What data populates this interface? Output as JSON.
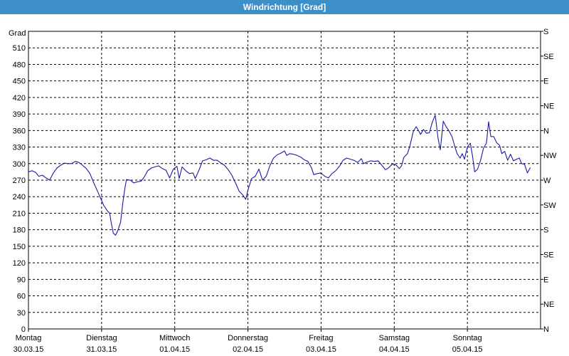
{
  "window": {
    "title": "Windrichtung [Grad]"
  },
  "colors": {
    "titlebar": "#3d8fc8",
    "line": "#1a1aa0",
    "grid": "#000000"
  },
  "chart_data": {
    "type": "line",
    "title": "Windrichtung [Grad]",
    "ylabel": "Grad",
    "ylim": [
      0,
      540
    ],
    "yticks": [
      0,
      30,
      60,
      90,
      120,
      150,
      180,
      210,
      240,
      270,
      300,
      330,
      360,
      390,
      420,
      450,
      480,
      510
    ],
    "right_axis_labels": [
      "N",
      "NE",
      "E",
      "SE",
      "S",
      "SW",
      "W",
      "NW",
      "N",
      "NE",
      "E",
      "SE",
      "S"
    ],
    "xlim": [
      0,
      7
    ],
    "day_ticks": [
      {
        "day": "Montag",
        "date": "30.03.15"
      },
      {
        "day": "Dienstag",
        "date": "31.03.15"
      },
      {
        "day": "Mittwoch",
        "date": "01.04.15"
      },
      {
        "day": "Donnerstag",
        "date": "02.04.15"
      },
      {
        "day": "Freitag",
        "date": "03.04.15"
      },
      {
        "day": "Samstag",
        "date": "04.04.15"
      },
      {
        "day": "Sonntag",
        "date": "05.04.15"
      }
    ],
    "grid": true,
    "series": [
      {
        "values": [
          [
            0.0,
            285
          ],
          [
            0.05,
            287
          ],
          [
            0.1,
            284
          ],
          [
            0.14,
            277
          ],
          [
            0.19,
            279
          ],
          [
            0.24,
            274
          ],
          [
            0.29,
            270
          ],
          [
            0.34,
            283
          ],
          [
            0.39,
            292
          ],
          [
            0.44,
            297
          ],
          [
            0.49,
            301
          ],
          [
            0.54,
            300
          ],
          [
            0.59,
            300
          ],
          [
            0.64,
            304
          ],
          [
            0.69,
            302
          ],
          [
            0.74,
            297
          ],
          [
            0.79,
            291
          ],
          [
            0.84,
            282
          ],
          [
            0.89,
            266
          ],
          [
            0.94,
            251
          ],
          [
            0.99,
            236
          ],
          [
            1.03,
            224
          ],
          [
            1.08,
            214
          ],
          [
            1.11,
            210
          ],
          [
            1.13,
            194
          ],
          [
            1.16,
            174
          ],
          [
            1.19,
            170
          ],
          [
            1.22,
            178
          ],
          [
            1.26,
            194
          ],
          [
            1.29,
            229
          ],
          [
            1.32,
            257
          ],
          [
            1.34,
            271
          ],
          [
            1.39,
            270
          ],
          [
            1.44,
            265
          ],
          [
            1.49,
            267
          ],
          [
            1.54,
            268
          ],
          [
            1.58,
            275
          ],
          [
            1.63,
            287
          ],
          [
            1.68,
            292
          ],
          [
            1.73,
            294
          ],
          [
            1.78,
            296
          ],
          [
            1.83,
            291
          ],
          [
            1.88,
            288
          ],
          [
            1.93,
            274
          ],
          [
            1.98,
            290
          ],
          [
            2.03,
            295
          ],
          [
            2.06,
            273
          ],
          [
            2.1,
            294
          ],
          [
            2.15,
            287
          ],
          [
            2.2,
            282
          ],
          [
            2.25,
            283
          ],
          [
            2.28,
            273
          ],
          [
            2.33,
            288
          ],
          [
            2.38,
            305
          ],
          [
            2.43,
            307
          ],
          [
            2.48,
            310
          ],
          [
            2.53,
            306
          ],
          [
            2.58,
            306
          ],
          [
            2.63,
            301
          ],
          [
            2.68,
            297
          ],
          [
            2.73,
            289
          ],
          [
            2.78,
            279
          ],
          [
            2.83,
            265
          ],
          [
            2.88,
            250
          ],
          [
            2.93,
            243
          ],
          [
            2.97,
            235
          ],
          [
            3.0,
            252
          ],
          [
            3.05,
            273
          ],
          [
            3.1,
            277
          ],
          [
            3.15,
            290
          ],
          [
            3.17,
            282
          ],
          [
            3.2,
            270
          ],
          [
            3.25,
            277
          ],
          [
            3.3,
            296
          ],
          [
            3.35,
            310
          ],
          [
            3.4,
            316
          ],
          [
            3.45,
            319
          ],
          [
            3.5,
            323
          ],
          [
            3.53,
            315
          ],
          [
            3.57,
            318
          ],
          [
            3.62,
            317
          ],
          [
            3.67,
            315
          ],
          [
            3.72,
            312
          ],
          [
            3.77,
            307
          ],
          [
            3.82,
            304
          ],
          [
            3.87,
            292
          ],
          [
            3.9,
            280
          ],
          [
            3.95,
            282
          ],
          [
            4.0,
            283
          ],
          [
            4.05,
            277
          ],
          [
            4.1,
            274
          ],
          [
            4.15,
            282
          ],
          [
            4.2,
            287
          ],
          [
            4.25,
            295
          ],
          [
            4.3,
            306
          ],
          [
            4.35,
            310
          ],
          [
            4.4,
            308
          ],
          [
            4.45,
            306
          ],
          [
            4.5,
            302
          ],
          [
            4.55,
            309
          ],
          [
            4.58,
            300
          ],
          [
            4.63,
            303
          ],
          [
            4.68,
            305
          ],
          [
            4.73,
            304
          ],
          [
            4.78,
            305
          ],
          [
            4.83,
            297
          ],
          [
            4.88,
            289
          ],
          [
            4.92,
            292
          ],
          [
            4.97,
            299
          ],
          [
            5.02,
            298
          ],
          [
            5.07,
            291
          ],
          [
            5.1,
            296
          ],
          [
            5.13,
            311
          ],
          [
            5.18,
            318
          ],
          [
            5.21,
            330
          ],
          [
            5.26,
            358
          ],
          [
            5.3,
            367
          ],
          [
            5.34,
            358
          ],
          [
            5.36,
            353
          ],
          [
            5.4,
            362
          ],
          [
            5.44,
            355
          ],
          [
            5.48,
            356
          ],
          [
            5.52,
            375
          ],
          [
            5.56,
            388
          ],
          [
            5.6,
            345
          ],
          [
            5.63,
            325
          ],
          [
            5.67,
            377
          ],
          [
            5.71,
            367
          ],
          [
            5.75,
            359
          ],
          [
            5.79,
            349
          ],
          [
            5.83,
            330
          ],
          [
            5.86,
            318
          ],
          [
            5.9,
            310
          ],
          [
            5.93,
            318
          ],
          [
            5.96,
            308
          ],
          [
            6.0,
            330
          ],
          [
            6.04,
            337
          ],
          [
            6.07,
            314
          ],
          [
            6.1,
            285
          ],
          [
            6.14,
            290
          ],
          [
            6.18,
            306
          ],
          [
            6.22,
            328
          ],
          [
            6.26,
            337
          ],
          [
            6.29,
            376
          ],
          [
            6.32,
            349
          ],
          [
            6.36,
            349
          ],
          [
            6.4,
            338
          ],
          [
            6.44,
            333
          ],
          [
            6.47,
            318
          ],
          [
            6.51,
            322
          ],
          [
            6.55,
            306
          ],
          [
            6.59,
            317
          ],
          [
            6.63,
            305
          ],
          [
            6.67,
            308
          ],
          [
            6.71,
            310
          ],
          [
            6.74,
            300
          ],
          [
            6.78,
            299
          ],
          [
            6.82,
            283
          ],
          [
            6.86,
            293
          ]
        ]
      }
    ]
  }
}
